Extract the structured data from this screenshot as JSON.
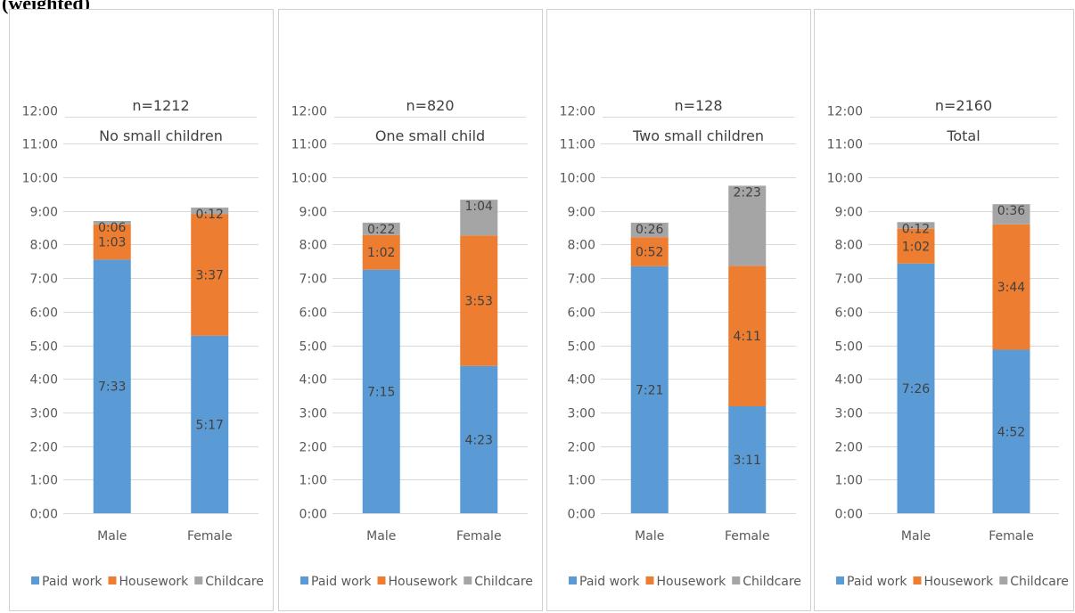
{
  "heading": "(weighted)",
  "colors": {
    "paid_work": "#5b9bd5",
    "housework": "#ed7d31",
    "childcare": "#a5a5a5",
    "gridline": "#d9d9d9",
    "text": "#595959"
  },
  "chart_data": [
    {
      "type": "bar",
      "stacked": true,
      "title": "n=1212",
      "subtitle": "No small children",
      "categories": [
        "Male",
        "Female"
      ],
      "y_ticks": [
        "0:00",
        "1:00",
        "2:00",
        "3:00",
        "4:00",
        "5:00",
        "6:00",
        "7:00",
        "8:00",
        "9:00",
        "10:00",
        "11:00",
        "12:00"
      ],
      "ylim": [
        0,
        12
      ],
      "grid": true,
      "legend_position": "bottom",
      "series": [
        {
          "name": "Paid work",
          "values": [
            7.55,
            5.283
          ],
          "labels": [
            "7:33",
            "5:17"
          ]
        },
        {
          "name": "Housework",
          "values": [
            1.05,
            3.617
          ],
          "labels": [
            "1:03",
            "3:37"
          ]
        },
        {
          "name": "Childcare",
          "values": [
            0.1,
            0.2
          ],
          "labels": [
            "0:06",
            "0:12"
          ]
        }
      ]
    },
    {
      "type": "bar",
      "stacked": true,
      "title": "n=820",
      "subtitle": "One small child",
      "categories": [
        "Male",
        "Female"
      ],
      "y_ticks": [
        "0:00",
        "1:00",
        "2:00",
        "3:00",
        "4:00",
        "5:00",
        "6:00",
        "7:00",
        "8:00",
        "9:00",
        "10:00",
        "11:00",
        "12:00"
      ],
      "ylim": [
        0,
        12
      ],
      "grid": true,
      "legend_position": "bottom",
      "series": [
        {
          "name": "Paid work",
          "values": [
            7.25,
            4.383
          ],
          "labels": [
            "7:15",
            "4:23"
          ]
        },
        {
          "name": "Housework",
          "values": [
            1.033,
            3.883
          ],
          "labels": [
            "1:02",
            "3:53"
          ]
        },
        {
          "name": "Childcare",
          "values": [
            0.367,
            1.067
          ],
          "labels": [
            "0:22",
            "1:04"
          ]
        }
      ]
    },
    {
      "type": "bar",
      "stacked": true,
      "title": "n=128",
      "subtitle": "Two small children",
      "categories": [
        "Male",
        "Female"
      ],
      "y_ticks": [
        "0:00",
        "1:00",
        "2:00",
        "3:00",
        "4:00",
        "5:00",
        "6:00",
        "7:00",
        "8:00",
        "9:00",
        "10:00",
        "11:00",
        "12:00"
      ],
      "ylim": [
        0,
        12
      ],
      "grid": true,
      "legend_position": "bottom",
      "series": [
        {
          "name": "Paid work",
          "values": [
            7.35,
            3.183
          ],
          "labels": [
            "7:21",
            "3:11"
          ]
        },
        {
          "name": "Housework",
          "values": [
            0.867,
            4.183
          ],
          "labels": [
            "0:52",
            "4:11"
          ]
        },
        {
          "name": "Childcare",
          "values": [
            0.433,
            2.383
          ],
          "labels": [
            "0:26",
            "2:23"
          ]
        }
      ]
    },
    {
      "type": "bar",
      "stacked": true,
      "title": "n=2160",
      "subtitle": "Total",
      "categories": [
        "Male",
        "Female"
      ],
      "y_ticks": [
        "0:00",
        "1:00",
        "2:00",
        "3:00",
        "4:00",
        "5:00",
        "6:00",
        "7:00",
        "8:00",
        "9:00",
        "10:00",
        "11:00",
        "12:00"
      ],
      "ylim": [
        0,
        12
      ],
      "grid": true,
      "legend_position": "bottom",
      "series": [
        {
          "name": "Paid work",
          "values": [
            7.433,
            4.867
          ],
          "labels": [
            "7:26",
            "4:52"
          ]
        },
        {
          "name": "Housework",
          "values": [
            1.033,
            3.733
          ],
          "labels": [
            "1:02",
            "3:44"
          ]
        },
        {
          "name": "Childcare",
          "values": [
            0.2,
            0.6
          ],
          "labels": [
            "0:12",
            "0:36"
          ]
        }
      ]
    }
  ]
}
